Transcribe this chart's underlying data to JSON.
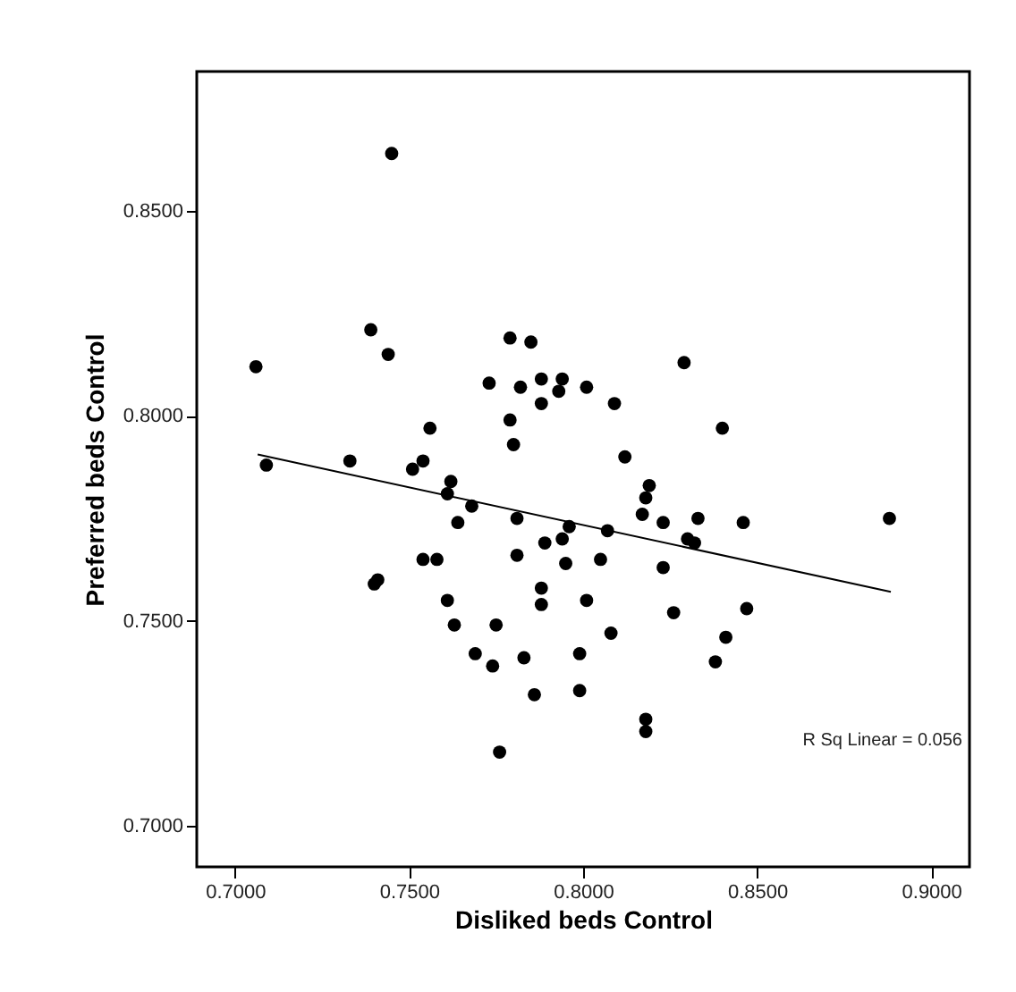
{
  "chart_data": {
    "type": "scatter",
    "xlabel": "Disliked beds Control",
    "ylabel": "Preferred beds Control",
    "annotations": [
      "R Sq Linear = 0.056"
    ],
    "xlim": [
      0.689,
      0.911
    ],
    "ylim": [
      0.69,
      0.884
    ],
    "xticks": [
      {
        "value": 0.7,
        "label": "0.7000"
      },
      {
        "value": 0.75,
        "label": "0.7500"
      },
      {
        "value": 0.8,
        "label": "0.8000"
      },
      {
        "value": 0.85,
        "label": "0.8500"
      },
      {
        "value": 0.9,
        "label": "0.9000"
      }
    ],
    "yticks": [
      {
        "value": 0.7,
        "label": "0.7000"
      },
      {
        "value": 0.75,
        "label": "0.7500"
      },
      {
        "value": 0.8,
        "label": "0.8000"
      },
      {
        "value": 0.85,
        "label": "0.8500"
      }
    ],
    "grid": false,
    "series": [
      {
        "color": "#000000",
        "marker": "circle",
        "x": [
          0.745,
          0.706,
          0.739,
          0.744,
          0.779,
          0.785,
          0.773,
          0.782,
          0.788,
          0.794,
          0.793,
          0.788,
          0.779,
          0.78,
          0.756,
          0.709,
          0.733,
          0.754,
          0.751,
          0.762,
          0.761,
          0.801,
          0.809,
          0.829,
          0.84,
          0.812,
          0.819,
          0.818,
          0.768,
          0.764,
          0.781,
          0.796,
          0.789,
          0.794,
          0.781,
          0.795,
          0.754,
          0.758,
          0.741,
          0.74,
          0.761,
          0.788,
          0.788,
          0.763,
          0.775,
          0.769,
          0.774,
          0.783,
          0.799,
          0.799,
          0.786,
          0.776,
          0.817,
          0.823,
          0.833,
          0.846,
          0.888,
          0.807,
          0.83,
          0.832,
          0.805,
          0.823,
          0.801,
          0.826,
          0.847,
          0.808,
          0.841,
          0.838,
          0.818,
          0.818
        ],
        "values": [
          0.864,
          0.812,
          0.821,
          0.815,
          0.819,
          0.818,
          0.808,
          0.807,
          0.809,
          0.809,
          0.806,
          0.803,
          0.799,
          0.793,
          0.797,
          0.788,
          0.789,
          0.789,
          0.787,
          0.784,
          0.781,
          0.807,
          0.803,
          0.813,
          0.797,
          0.79,
          0.783,
          0.78,
          0.778,
          0.774,
          0.775,
          0.773,
          0.769,
          0.77,
          0.766,
          0.764,
          0.765,
          0.765,
          0.76,
          0.759,
          0.755,
          0.758,
          0.754,
          0.749,
          0.749,
          0.742,
          0.739,
          0.741,
          0.742,
          0.733,
          0.732,
          0.718,
          0.776,
          0.774,
          0.775,
          0.774,
          0.775,
          0.772,
          0.77,
          0.769,
          0.765,
          0.763,
          0.755,
          0.752,
          0.753,
          0.747,
          0.746,
          0.74,
          0.726,
          0.723
        ]
      },
      {
        "type": "line",
        "color": "#000000",
        "x": [
          0.7065,
          0.8884
        ],
        "values": [
          0.7906,
          0.7571
        ]
      }
    ]
  }
}
